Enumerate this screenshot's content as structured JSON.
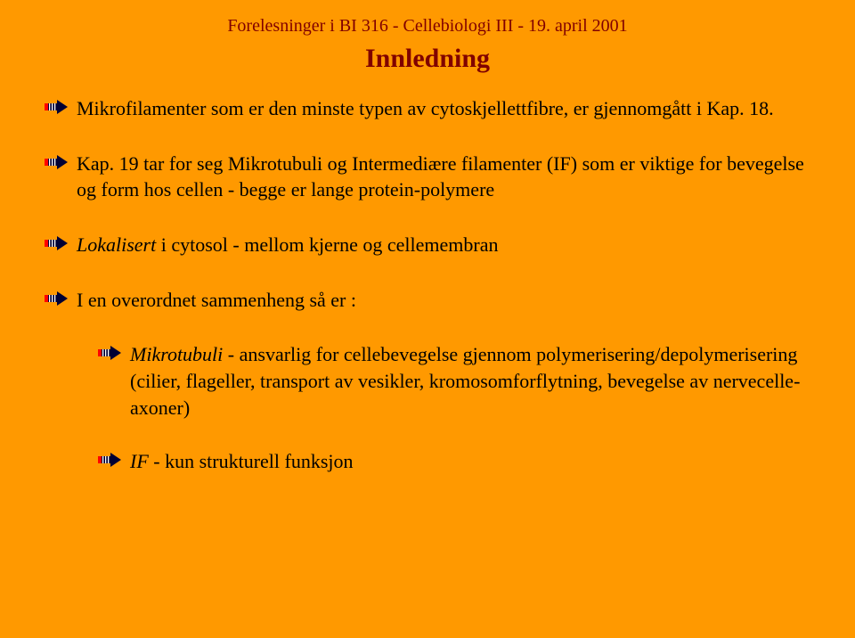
{
  "slide": {
    "header": "Forelesninger i BI 316 - Cellebiologi III - 19. april 2001",
    "title": "Innledning",
    "colors": {
      "background": "#ff9900",
      "heading": "#800000",
      "body_text": "#000000",
      "arrow_fill": "#000033",
      "arrow_tail": "#ff0000"
    },
    "typography": {
      "header_fontsize": 20,
      "title_fontsize": 30,
      "body_fontsize": 22,
      "font_family": "serif"
    },
    "bullets": [
      {
        "level": 1,
        "html": "Mikrofilamenter som er den minste typen av cytoskjellettfibre, er gjennomgått i Kap. 18."
      },
      {
        "level": 1,
        "html": "Kap. 19 tar for seg Mikrotubuli og Intermediære filamenter (IF) som er viktige for bevegelse og form hos cellen - begge er lange protein-polymere"
      },
      {
        "level": 1,
        "html": "<span class=\"italic\">Lokalisert</span> i cytosol - mellom kjerne og cellemembran"
      },
      {
        "level": 1,
        "html": "I en overordnet sammenheng så er :"
      },
      {
        "level": 2,
        "html": "<span class=\"italic\">Mikrotubuli</span> - ansvarlig for cellebevegelse gjennom polymerisering/depolymerisering (cilier, flageller, transport av vesikler, kromosomforflytning, bevegelse av nervecelle-axoner)"
      },
      {
        "level": 2,
        "html": "<span class=\"italic\">IF</span> - kun strukturell funksjon"
      }
    ]
  }
}
